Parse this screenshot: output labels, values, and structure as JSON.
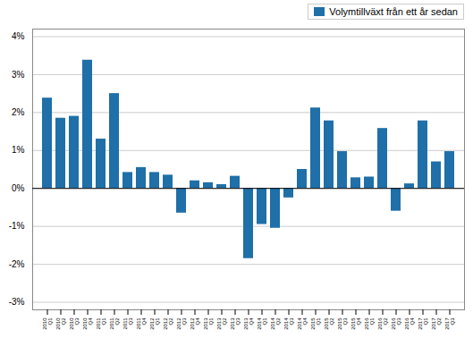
{
  "chart_data": {
    "type": "bar",
    "categories": [
      "2010\nQ1",
      "2010\nQ2",
      "2010\nQ3",
      "2010\nQ4",
      "2011\nQ1",
      "2011\nQ2",
      "2011\nQ3",
      "2011\nQ4",
      "2012\nQ1",
      "2012\nQ2",
      "2012\nQ3",
      "2012\nQ4",
      "2013\nQ1",
      "2013\nQ2",
      "2013\nQ3",
      "2013\nQ4",
      "2014\nQ1",
      "2014\nQ2",
      "2014\nQ3",
      "2014\nQ4",
      "2015\nQ1",
      "2015\nQ2",
      "2015\nQ3",
      "2015\nQ4",
      "2016\nQ1",
      "2016\nQ2",
      "2016\nQ3",
      "2016\nQ4",
      "2017\nQ1",
      "2017\nQ2",
      "2017\nQ3"
    ],
    "series": [
      {
        "name": "Volymtillväxt från ett år sedan",
        "color": "#1f6fa8",
        "values": [
          2.38,
          1.85,
          1.9,
          3.38,
          1.3,
          2.5,
          0.42,
          0.55,
          0.42,
          0.35,
          -0.65,
          0.2,
          0.15,
          0.1,
          0.32,
          -1.85,
          -0.95,
          -1.05,
          -0.25,
          0.5,
          2.12,
          1.78,
          0.97,
          0.28,
          0.3,
          1.58,
          -0.6,
          0.12,
          1.78,
          0.7,
          0.97
        ]
      }
    ],
    "ylim": [
      -3.2,
      4.2
    ],
    "yticks": [
      {
        "value": -3,
        "label": "-3%"
      },
      {
        "value": -2,
        "label": "-2%"
      },
      {
        "value": -1,
        "label": "-1%"
      },
      {
        "value": 0,
        "label": "0%"
      },
      {
        "value": 1,
        "label": "1%"
      },
      {
        "value": 2,
        "label": "2%"
      },
      {
        "value": 3,
        "label": "3%"
      },
      {
        "value": 4,
        "label": "4%"
      }
    ],
    "grid": true,
    "legend": "upper right"
  }
}
